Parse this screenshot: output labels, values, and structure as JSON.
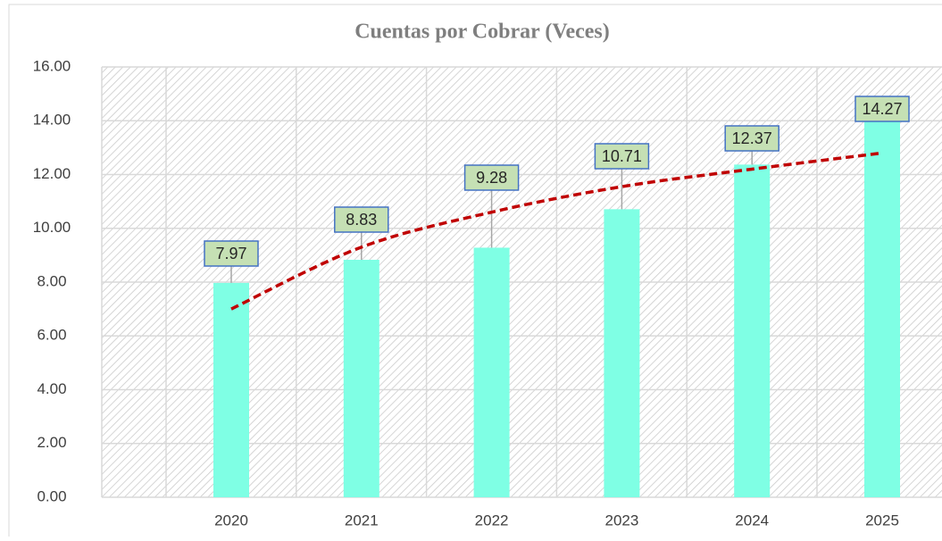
{
  "chart_data": {
    "type": "bar",
    "title": "Cuentas por Cobrar (Veces)",
    "categories": [
      "2020",
      "2021",
      "2022",
      "2023",
      "2024",
      "2025"
    ],
    "values": [
      7.97,
      8.83,
      9.28,
      10.71,
      12.37,
      14.27
    ],
    "color": "#7fffe4",
    "trendline": {
      "values": [
        7.0,
        9.3,
        10.6,
        11.55,
        12.2,
        12.8
      ],
      "color": "#c00000"
    },
    "ylim": [
      0,
      16
    ],
    "yticks": [
      {
        "value": 0,
        "label": "0.00"
      },
      {
        "value": 2,
        "label": "2.00"
      },
      {
        "value": 4,
        "label": "4.00"
      },
      {
        "value": 6,
        "label": "6.00"
      },
      {
        "value": 8,
        "label": "8.00"
      },
      {
        "value": 10,
        "label": "10.00"
      },
      {
        "value": 12,
        "label": "12.00"
      },
      {
        "value": 14,
        "label": "14.00"
      },
      {
        "value": 16,
        "label": "16.00"
      }
    ],
    "grid": true
  }
}
